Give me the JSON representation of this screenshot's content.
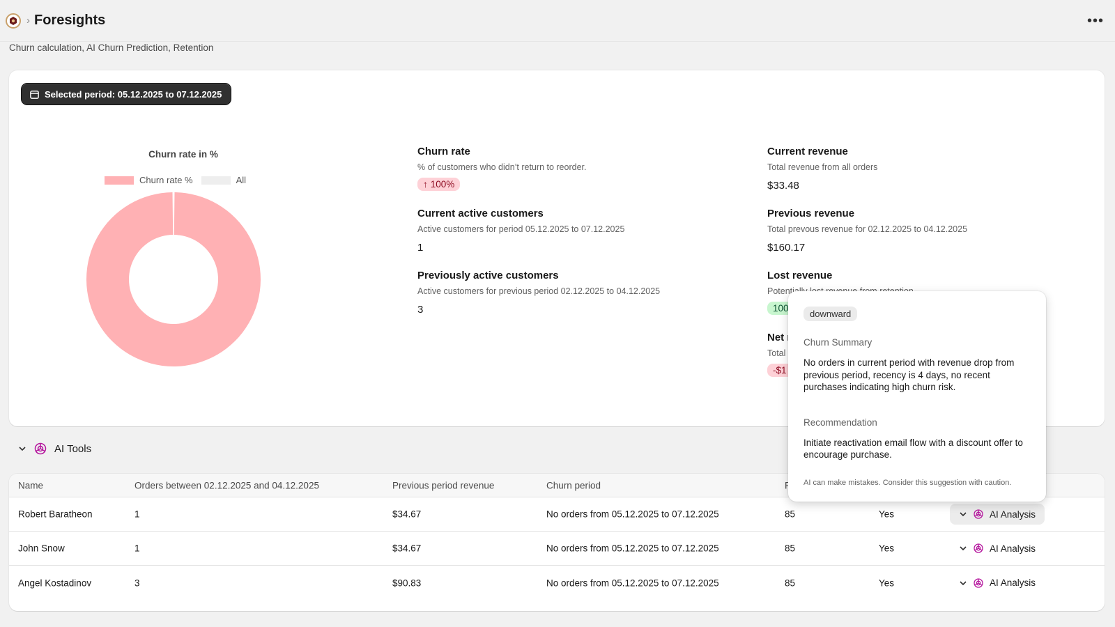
{
  "header": {
    "title": "Foresights",
    "subtitle": "Churn calculation, AI Churn Prediction, Retention",
    "more_label": "•••"
  },
  "period": {
    "label": "Selected period: 05.12.2025 to 07.12.2025"
  },
  "chart_data": {
    "type": "pie",
    "title": "Churn rate in %",
    "legend": [
      "Churn rate %",
      "All"
    ],
    "values": [
      100,
      0
    ],
    "colors": [
      "#ffb1b4",
      "#eeeeee"
    ]
  },
  "metrics": {
    "churn_rate": {
      "title": "Churn rate",
      "desc": "% of customers who didn’t return to reorder.",
      "badge_arrow": "↑",
      "badge": "100%"
    },
    "current_active": {
      "title": "Current active customers",
      "desc": "Active customers for period 05.12.2025 to 07.12.2025",
      "value": "1"
    },
    "previous_active": {
      "title": "Previously active customers",
      "desc": "Active customers for previous period 02.12.2025 to 04.12.2025",
      "value": "3"
    },
    "current_revenue": {
      "title": "Current revenue",
      "desc": "Total revenue from all orders",
      "value": "$33.48"
    },
    "previous_revenue": {
      "title": "Previous revenue",
      "desc": "Total prevous revenue for 02.12.2025 to 04.12.2025",
      "value": "$160.17"
    },
    "lost_revenue": {
      "title": "Lost revenue",
      "desc": "Potentially lost revenue from retention",
      "badge": "100"
    },
    "net": {
      "title": "Net r",
      "desc": "Total",
      "badge": "-$1"
    }
  },
  "ai_tools": {
    "label": "AI Tools"
  },
  "table": {
    "headers": {
      "name": "Name",
      "orders": "Orders between 02.12.2025 and 04.12.2025",
      "prev_revenue": "Previous period revenue",
      "churn_period": "Churn period",
      "recency": "R"
    },
    "rows": [
      {
        "name": "Robert Baratheon",
        "orders": "1",
        "prev_revenue": "$34.67",
        "churn_period": "No orders from 05.12.2025 to 07.12.2025",
        "recency": "85",
        "risk": "Yes",
        "ai": "AI Analysis"
      },
      {
        "name": "John Snow",
        "orders": "1",
        "prev_revenue": "$34.67",
        "churn_period": "No orders from 05.12.2025 to 07.12.2025",
        "recency": "85",
        "risk": "Yes",
        "ai": "AI Analysis"
      },
      {
        "name": "Angel Kostadinov",
        "orders": "3",
        "prev_revenue": "$90.83",
        "churn_period": "No orders from 05.12.2025 to 07.12.2025",
        "recency": "85",
        "risk": "Yes",
        "ai": "AI Analysis"
      }
    ]
  },
  "popover": {
    "tag": "downward",
    "summary_heading": "Churn Summary",
    "summary_text": "No orders in current period with revenue drop from previous period, recency is 4 days, no recent purchases indicating high churn risk.",
    "rec_heading": "Recommendation",
    "rec_text": "Initiate reactivation email flow with a discount offer to encourage purchase.",
    "note": "AI can make mistakes. Consider this suggestion with caution."
  },
  "icons": {
    "app_logo": "app-logo-icon",
    "chevron": "chevron-right-icon",
    "calendar": "calendar-icon",
    "openai": "openai-icon",
    "chevron_down": "chevron-down-icon"
  }
}
